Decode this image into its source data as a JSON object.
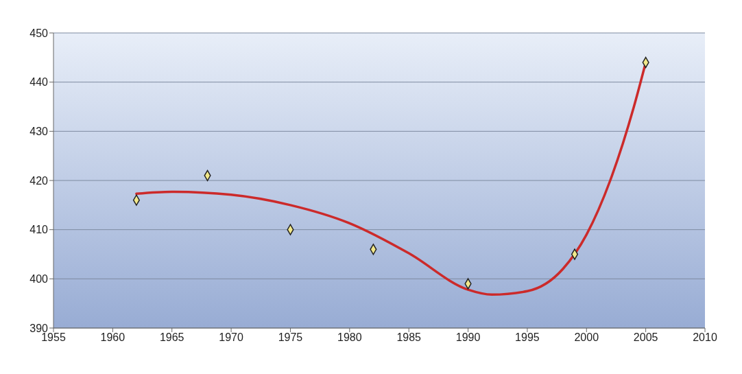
{
  "chart_data": {
    "type": "scatter",
    "xlim": [
      1955,
      2010
    ],
    "xticks": [
      1955,
      1960,
      1965,
      1970,
      1975,
      1980,
      1985,
      1990,
      1995,
      2000,
      2005,
      2010
    ],
    "ylim": [
      390,
      450
    ],
    "yticks": [
      390,
      400,
      410,
      420,
      430,
      440,
      450
    ],
    "grid": "y",
    "legend": false,
    "series": [
      {
        "marker": "diamond",
        "color": "#f2e88a",
        "x": [
          1962,
          1968,
          1975,
          1982,
          1990,
          1999,
          2005
        ],
        "values": [
          416,
          421,
          410,
          406,
          399,
          405,
          444
        ]
      },
      {
        "type": "line",
        "marker": "none",
        "color": "#cc2a2a",
        "x": [
          1962,
          1965,
          1970,
          1975,
          1980,
          1985,
          1990,
          1992,
          1995,
          1998,
          2000,
          2002,
          2004,
          2005
        ],
        "values": [
          417.3,
          417.7,
          417.1,
          415,
          411.3,
          405.2,
          397.8,
          396.8,
          397.5,
          402,
          409,
          420,
          435,
          444
        ]
      }
    ]
  }
}
